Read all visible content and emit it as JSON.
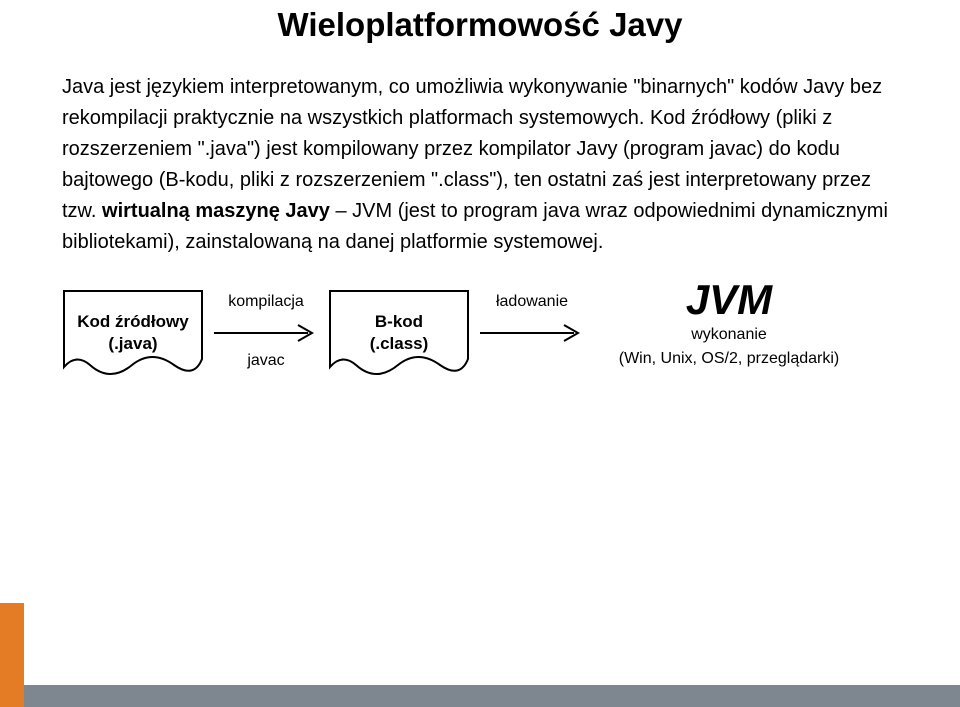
{
  "title": {
    "text": "Wieloplatformowość Javy",
    "font_size": 33,
    "color": "#000000"
  },
  "body": {
    "font_size": 20,
    "color": "#000000",
    "segments": [
      {
        "text": "Java jest językiem interpretowanym, co umożliwia wykonywanie \"binarnych\" kodów Javy bez rekompilacji praktycznie na wszystkich platformach systemowych. Kod źródłowy (pliki z rozszerzeniem \".java\") jest kompilowany przez kompilator Javy (program javac) do kodu bajtowego (B-kodu, pliki z rozszerzeniem \".class\"), ten ostatni zaś jest interpretowany przez tzw. ",
        "bold": false
      },
      {
        "text": "wirtualną maszynę Javy",
        "bold": true
      },
      {
        "text": " – JVM (jest to program java wraz odpowiednimi dynamicznymi bibliotekami), zainstalowaną na danej platformie systemowej.",
        "bold": false
      }
    ]
  },
  "diagram": {
    "stroke_color": "#000000",
    "stroke_width": 2,
    "text_color": "#000000",
    "file1": {
      "line1": "Kod źródłowy",
      "line2": "(.java)"
    },
    "arrow1": {
      "top": "kompilacja",
      "bottom": "javac"
    },
    "file2": {
      "line1": "B-kod",
      "line2": "(.class)"
    },
    "arrow2": {
      "top": "ładowanie",
      "bottom": ""
    },
    "jvm": {
      "big": "JVM",
      "mid": "wykonanie",
      "bot": "(Win, Unix, OS/2, przeglądarki)"
    }
  },
  "accent": {
    "left_color": "#e47b25",
    "bottom_color": "#7e8790"
  }
}
